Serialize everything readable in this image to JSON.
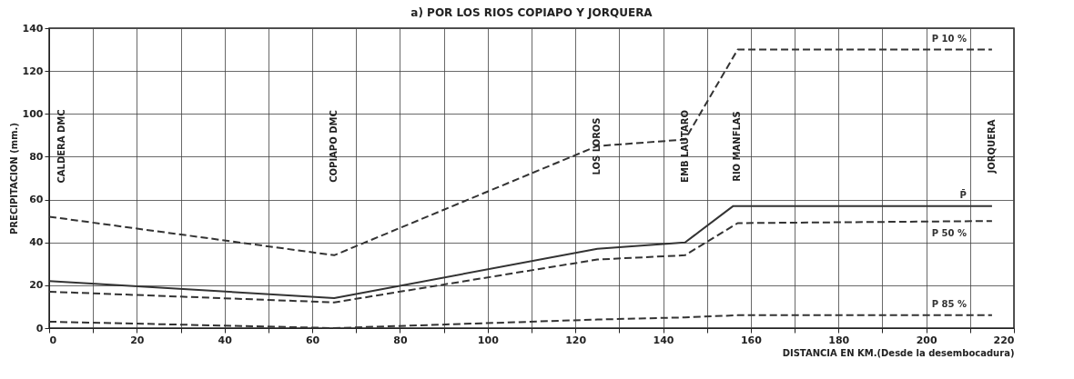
{
  "chart_data": {
    "type": "line",
    "title": "a) POR LOS RIOS COPIAPO Y JORQUERA",
    "xlabel": "DISTANCIA EN KM.(Desde la desembocadura)",
    "ylabel": "PRECIPITACION  (mm.)",
    "x": [
      0,
      65,
      125,
      145,
      157,
      215
    ],
    "series": [
      {
        "name": "P 10 %",
        "color": "#333333",
        "line_style": "dashed",
        "values": [
          52,
          34,
          85,
          88,
          130,
          130
        ]
      },
      {
        "name": "P̄",
        "color": "#333333",
        "line_style": "solid",
        "x": [
          0,
          65,
          125,
          145,
          156,
          215
        ],
        "values": [
          22,
          14,
          37,
          40,
          57,
          57
        ]
      },
      {
        "name": "P 50 %",
        "color": "#333333",
        "line_style": "dashed",
        "values": [
          17,
          12,
          32,
          34,
          49,
          50
        ]
      },
      {
        "name": "P 85 %",
        "color": "#333333",
        "line_style": "dashed",
        "values": [
          3,
          0,
          4,
          5,
          6,
          6
        ]
      }
    ],
    "annotations": [
      "CALDERA DMC",
      "COPIAPO DMC",
      "LOS LOROS",
      "EMB LAUTARO",
      "RIO MANFLAS",
      "JORQUERA"
    ],
    "xlim": [
      0,
      220
    ],
    "ylim": [
      0,
      140
    ],
    "xticks": [
      0,
      {
        "value": 10,
        "label": null
      },
      20,
      {
        "value": 30,
        "label": null
      },
      40,
      {
        "value": 50,
        "label": null
      },
      60,
      {
        "value": 70,
        "label": null
      },
      80,
      {
        "value": 90,
        "label": null
      },
      100,
      {
        "value": 110,
        "label": null
      },
      120,
      {
        "value": 130,
        "label": null
      },
      140,
      {
        "value": 150,
        "label": null
      },
      160,
      {
        "value": 170,
        "label": null
      },
      180,
      {
        "value": 190,
        "label": null
      },
      200,
      {
        "value": 210,
        "label": null
      },
      220
    ],
    "yticks": [
      0,
      20,
      40,
      60,
      80,
      100,
      120,
      140
    ],
    "grid": true,
    "legend": false
  }
}
